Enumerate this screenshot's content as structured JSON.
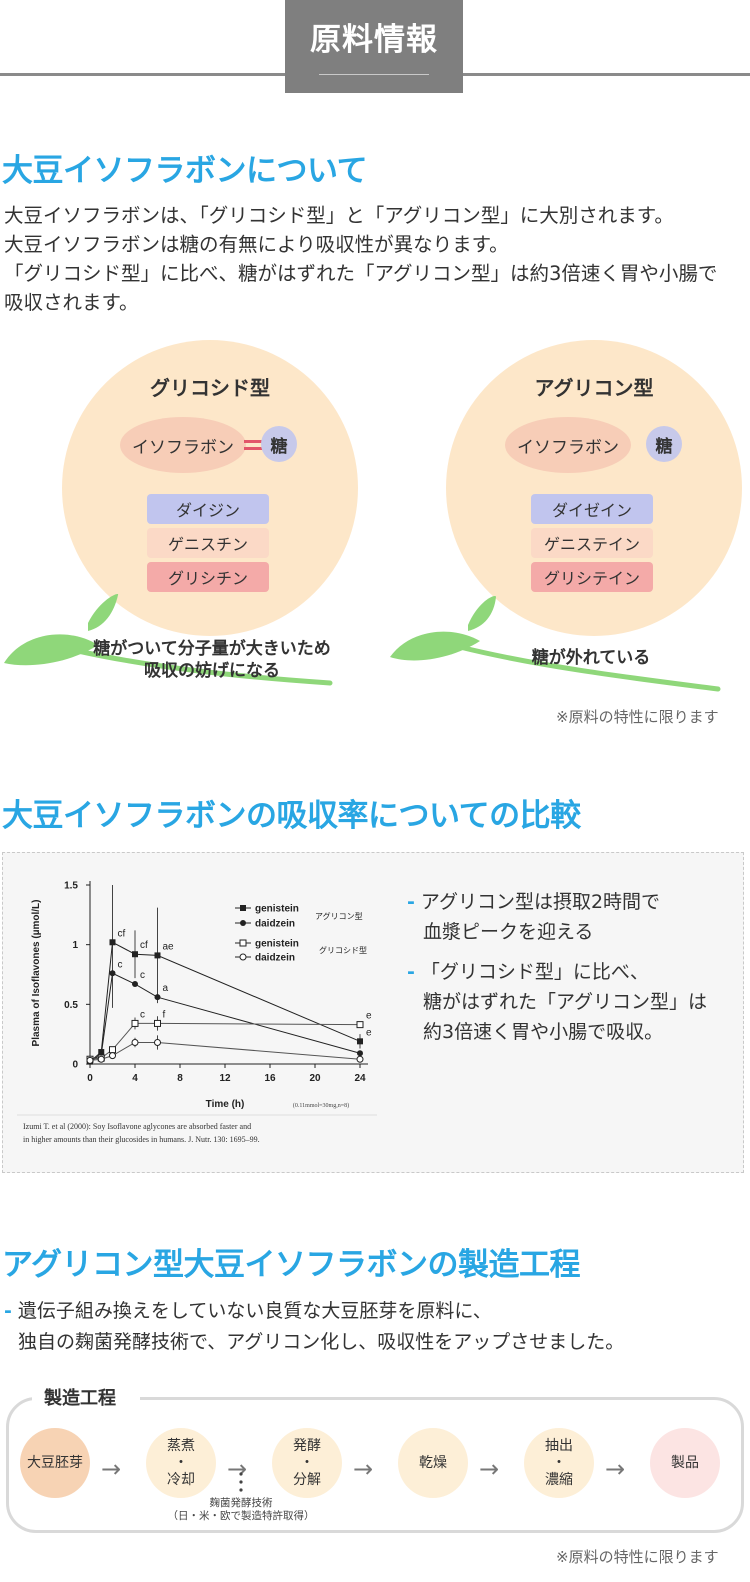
{
  "header": {
    "title": "原料情報"
  },
  "section1": {
    "title": "大豆イソフラボンについて",
    "lines": [
      "大豆イソフラボンは、「グリコシド型」と「アグリコン型」に大別されます。",
      "大豆イソフラボンは糖の有無により吸収性が異なります。",
      "「グリコシド型」に比べ、糖がはずれた「アグリコン型」は約3倍速く胃や小腸で",
      "吸収されます。"
    ]
  },
  "glycoside": {
    "title": "グリコシド型",
    "isoflavone": "イソフラボン",
    "sugar": "糖",
    "items": [
      "ダイジン",
      "ゲニスチン",
      "グリシチン"
    ],
    "caption_line1": "糖がついて分子量が大きいため",
    "caption_line2": "吸収の妨げになる"
  },
  "aglycone": {
    "title": "アグリコン型",
    "isoflavone": "イソフラボン",
    "sugar": "糖",
    "items": [
      "ダイゼイン",
      "ゲニステイン",
      "グリシテイン"
    ],
    "caption": "糖が外れている"
  },
  "note1": "※原料の特性に限ります",
  "section2": {
    "title": "大豆イソフラボンの吸収率についての比較",
    "bullet1_line1": "アグリコン型は摂取2時間で",
    "bullet1_line2": "血漿ピークを迎える",
    "bullet2_line1": "「グリコシド型」に比べ、",
    "bullet2_line2": "糖がはずれた「アグリコン型」は",
    "bullet2_line3": "約3倍速く胃や小腸で吸収。"
  },
  "chart_data": {
    "type": "line",
    "ylabel": "Plasma of Isoflavones (µmol/L)",
    "xlabel": "Time (h)",
    "x_note": "(0.11mmol=30mg,n=8)",
    "xlim": [
      0,
      24
    ],
    "ylim": [
      0,
      1.5
    ],
    "x_ticks": [
      "0",
      "4",
      "8",
      "12",
      "16",
      "20",
      "24"
    ],
    "y_ticks": [
      "0",
      "0.5",
      "1",
      "1.5"
    ],
    "x": [
      0,
      1,
      2,
      4,
      6,
      24
    ],
    "series": [
      {
        "name": "genistein",
        "group": "アグリコン型",
        "marker": "filled-square",
        "values": [
          0.02,
          0.1,
          1.02,
          0.92,
          0.91,
          0.19
        ]
      },
      {
        "name": "daidzein",
        "group": "アグリコン型",
        "marker": "filled-circle",
        "values": [
          0.02,
          0.08,
          0.76,
          0.67,
          0.56,
          0.09
        ]
      },
      {
        "name": "genistein",
        "group": "グリコシド型",
        "marker": "open-square",
        "values": [
          0.04,
          0.05,
          0.12,
          0.34,
          0.34,
          0.33
        ]
      },
      {
        "name": "daidzein",
        "group": "グリコシド型",
        "marker": "open-circle",
        "values": [
          0.03,
          0.04,
          0.07,
          0.18,
          0.18,
          0.04
        ]
      }
    ],
    "annotations": [
      {
        "text": "cf",
        "x": 2,
        "y": 1.02
      },
      {
        "text": "cf",
        "x": 4,
        "y": 0.92
      },
      {
        "text": "ae",
        "x": 6,
        "y": 0.91
      },
      {
        "text": "c",
        "x": 2,
        "y": 0.76
      },
      {
        "text": "c",
        "x": 4,
        "y": 0.67
      },
      {
        "text": "a",
        "x": 6,
        "y": 0.56
      },
      {
        "text": "c",
        "x": 4,
        "y": 0.34
      },
      {
        "text": "f",
        "x": 6,
        "y": 0.34
      },
      {
        "text": "e",
        "x": 24,
        "y": 0.33
      },
      {
        "text": "e",
        "x": 24,
        "y": 0.19
      }
    ],
    "legend_group1": "アグリコン型",
    "legend_group2": "グリコシド型",
    "citation_line1": "Izumi T. et al (2000): Soy Isoflavone aglycones are absorbed faster and",
    "citation_line2": "in higher amounts than their glucosides in humans. J. Nutr. 130: 1695–99."
  },
  "section3": {
    "title": "アグリコン型大豆イソフラボンの製造工程",
    "line1": "遺伝子組み換えをしていない良質な大豆胚芽を原料に、",
    "line2": "独自の麹菌発酵技術で、アグリコン化し、吸収性をアップさせました。"
  },
  "process": {
    "label": "製造工程",
    "steps": [
      {
        "l1": "大豆胚芽",
        "l2": "",
        "l3": ""
      },
      {
        "l1": "蒸煮",
        "l2": "・",
        "l3": "冷却"
      },
      {
        "l1": "発酵",
        "l2": "・",
        "l3": "分解"
      },
      {
        "l1": "乾燥",
        "l2": "",
        "l3": ""
      },
      {
        "l1": "抽出",
        "l2": "・",
        "l3": "濃縮"
      },
      {
        "l1": "製品",
        "l2": "",
        "l3": ""
      }
    ],
    "koji_line1": "麹菌発酵技術",
    "koji_line2": "（日・米・欧で製造特許取得）"
  },
  "note2": "※原料の特性に限ります"
}
